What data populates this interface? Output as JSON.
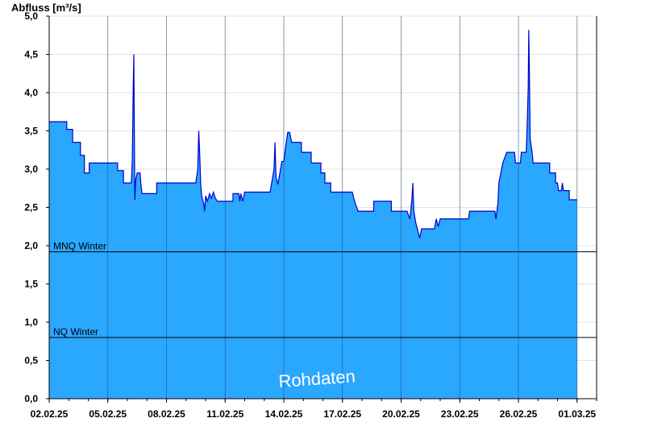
{
  "chart_data": {
    "type": "area",
    "ylabel": "Abfluss [m³/s]",
    "ylim": [
      0,
      5.0
    ],
    "yticks": [
      "0,0",
      "0,5",
      "1,0",
      "1,5",
      "2,0",
      "2,5",
      "3,0",
      "3,5",
      "4,0",
      "4,5",
      "5,0"
    ],
    "xlim_days": [
      1.0,
      29.0
    ],
    "xticks": [
      {
        "label": "02.02.25",
        "day": 1
      },
      {
        "label": "05.02.25",
        "day": 4
      },
      {
        "label": "08.02.25",
        "day": 7
      },
      {
        "label": "11.02.25",
        "day": 10
      },
      {
        "label": "14.02.25",
        "day": 13
      },
      {
        "label": "17.02.25",
        "day": 16
      },
      {
        "label": "20.02.25",
        "day": 19
      },
      {
        "label": "23.02.25",
        "day": 22
      },
      {
        "label": "26.02.25",
        "day": 25
      },
      {
        "label": "01.03.25",
        "day": 28
      }
    ],
    "grid": true,
    "fill_color": "#2aa7ff",
    "line_color": "#0000cc",
    "reference_lines": [
      {
        "name": "MNQ Winter",
        "value": 1.92
      },
      {
        "name": "NQ Winter",
        "value": 0.8
      }
    ],
    "series": [
      {
        "points": [
          [
            1.0,
            3.62
          ],
          [
            1.9,
            3.62
          ],
          [
            1.9,
            3.52
          ],
          [
            2.2,
            3.52
          ],
          [
            2.2,
            3.35
          ],
          [
            2.6,
            3.35
          ],
          [
            2.6,
            3.18
          ],
          [
            2.8,
            3.18
          ],
          [
            2.8,
            2.95
          ],
          [
            3.05,
            2.95
          ],
          [
            3.05,
            3.08
          ],
          [
            4.5,
            3.08
          ],
          [
            4.5,
            2.98
          ],
          [
            4.8,
            2.98
          ],
          [
            4.8,
            2.82
          ],
          [
            5.2,
            2.82
          ],
          [
            5.25,
            3.1
          ],
          [
            5.3,
            4.1
          ],
          [
            5.33,
            4.5
          ],
          [
            5.36,
            3.3
          ],
          [
            5.38,
            2.6
          ],
          [
            5.42,
            2.85
          ],
          [
            5.5,
            2.95
          ],
          [
            5.65,
            2.95
          ],
          [
            5.7,
            2.78
          ],
          [
            5.75,
            2.68
          ],
          [
            6.5,
            2.68
          ],
          [
            6.5,
            2.82
          ],
          [
            8.5,
            2.82
          ],
          [
            8.6,
            3.0
          ],
          [
            8.65,
            3.5
          ],
          [
            8.7,
            3.2
          ],
          [
            8.75,
            2.8
          ],
          [
            8.8,
            2.65
          ],
          [
            8.9,
            2.55
          ],
          [
            8.95,
            2.45
          ],
          [
            9.0,
            2.65
          ],
          [
            9.1,
            2.58
          ],
          [
            9.2,
            2.68
          ],
          [
            9.3,
            2.62
          ],
          [
            9.4,
            2.7
          ],
          [
            9.5,
            2.62
          ],
          [
            9.6,
            2.58
          ],
          [
            10.4,
            2.58
          ],
          [
            10.4,
            2.68
          ],
          [
            10.7,
            2.68
          ],
          [
            10.75,
            2.58
          ],
          [
            10.8,
            2.68
          ],
          [
            10.9,
            2.58
          ],
          [
            11.0,
            2.7
          ],
          [
            12.3,
            2.7
          ],
          [
            12.4,
            2.85
          ],
          [
            12.5,
            3.0
          ],
          [
            12.55,
            3.35
          ],
          [
            12.6,
            2.9
          ],
          [
            12.7,
            2.8
          ],
          [
            12.8,
            2.95
          ],
          [
            12.9,
            3.1
          ],
          [
            13.0,
            3.1
          ],
          [
            13.1,
            3.3
          ],
          [
            13.2,
            3.48
          ],
          [
            13.3,
            3.48
          ],
          [
            13.4,
            3.35
          ],
          [
            13.9,
            3.35
          ],
          [
            13.9,
            3.22
          ],
          [
            14.4,
            3.22
          ],
          [
            14.4,
            3.08
          ],
          [
            14.9,
            3.08
          ],
          [
            14.9,
            2.95
          ],
          [
            15.1,
            2.95
          ],
          [
            15.1,
            2.82
          ],
          [
            15.4,
            2.82
          ],
          [
            15.4,
            2.7
          ],
          [
            16.5,
            2.7
          ],
          [
            16.6,
            2.6
          ],
          [
            16.7,
            2.52
          ],
          [
            16.8,
            2.45
          ],
          [
            17.6,
            2.45
          ],
          [
            17.6,
            2.58
          ],
          [
            18.5,
            2.58
          ],
          [
            18.5,
            2.45
          ],
          [
            19.3,
            2.45
          ],
          [
            19.45,
            2.35
          ],
          [
            19.55,
            2.6
          ],
          [
            19.6,
            2.82
          ],
          [
            19.65,
            2.45
          ],
          [
            19.75,
            2.3
          ],
          [
            19.85,
            2.2
          ],
          [
            19.95,
            2.1
          ],
          [
            20.05,
            2.22
          ],
          [
            20.7,
            2.22
          ],
          [
            20.8,
            2.35
          ],
          [
            20.9,
            2.25
          ],
          [
            21.0,
            2.35
          ],
          [
            22.45,
            2.35
          ],
          [
            22.5,
            2.45
          ],
          [
            23.8,
            2.45
          ],
          [
            23.85,
            2.35
          ],
          [
            23.95,
            2.55
          ],
          [
            24.0,
            2.82
          ],
          [
            24.1,
            2.95
          ],
          [
            24.2,
            3.08
          ],
          [
            24.4,
            3.22
          ],
          [
            24.8,
            3.22
          ],
          [
            24.85,
            3.08
          ],
          [
            25.1,
            3.08
          ],
          [
            25.15,
            3.22
          ],
          [
            25.4,
            3.22
          ],
          [
            25.45,
            3.6
          ],
          [
            25.5,
            4.05
          ],
          [
            25.53,
            4.82
          ],
          [
            25.56,
            4.3
          ],
          [
            25.6,
            3.4
          ],
          [
            25.7,
            3.22
          ],
          [
            25.75,
            3.08
          ],
          [
            26.6,
            3.08
          ],
          [
            26.6,
            2.95
          ],
          [
            26.9,
            2.95
          ],
          [
            26.9,
            2.82
          ],
          [
            27.0,
            2.82
          ],
          [
            27.05,
            2.72
          ],
          [
            27.2,
            2.72
          ],
          [
            27.25,
            2.82
          ],
          [
            27.3,
            2.72
          ],
          [
            27.6,
            2.72
          ],
          [
            27.6,
            2.6
          ],
          [
            28.0,
            2.6
          ]
        ]
      }
    ]
  },
  "watermark": "Rohdaten"
}
